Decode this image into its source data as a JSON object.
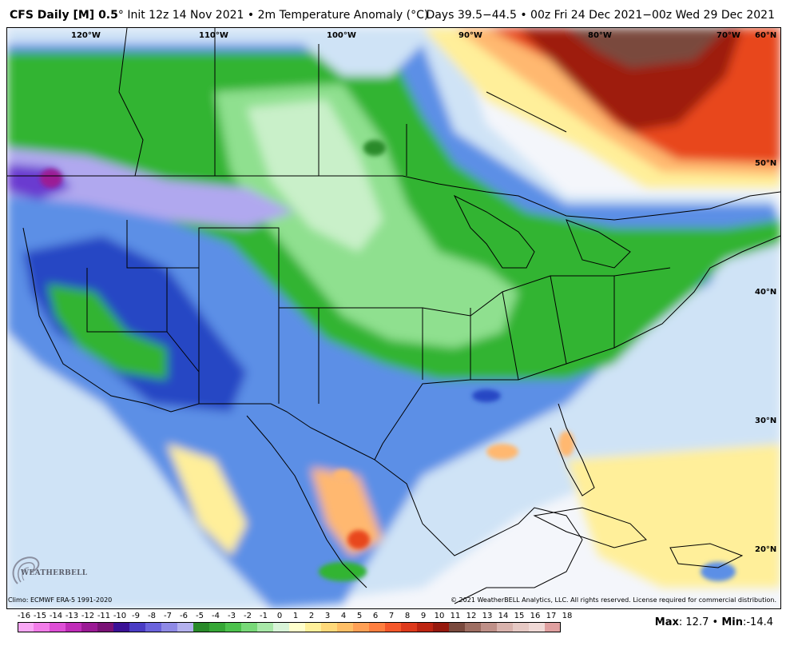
{
  "header": {
    "model": "CFS Daily [M] 0.5",
    "degree_mark": "°",
    "init": "Init 12z 14 Nov 2021",
    "bullet": "•",
    "variable": "2m Temperature Anomaly (°C)",
    "valid": "Days 39.5−44.5 • 00z Fri 24 Dec 2021−00z Wed 29 Dec 2021"
  },
  "longitude_labels": [
    "120°W",
    "110°W",
    "100°W",
    "90°W",
    "80°W",
    "70°W",
    "60°N"
  ],
  "latitude_labels": [
    "50°N",
    "40°N",
    "30°N",
    "20°N"
  ],
  "footer": {
    "climo": "Climo: ECMWF ERA-5 1991-2020",
    "copyright": "© 2021 WeatherBELL Analytics, LLC. All rights reserved. License required for commercial distribution.",
    "logo_text": "WEATHERBELL",
    "max_label": "Max",
    "max_value": "12.7",
    "min_label": "Min",
    "min_value": "-14.4",
    "separator": "•",
    "colon": ":"
  },
  "colorbar": {
    "labels": [
      "-16",
      "-15",
      "-14",
      "-13",
      "-12",
      "-11",
      "-10",
      "-9",
      "-8",
      "-7",
      "-6",
      "-5",
      "-4",
      "-3",
      "-2",
      "-1",
      "0",
      "1",
      "2",
      "3",
      "4",
      "5",
      "6",
      "7",
      "8",
      "9",
      "10",
      "11",
      "12",
      "13",
      "14",
      "15",
      "16",
      "17",
      "18"
    ],
    "colors": [
      "#f9a8f5",
      "#f27de9",
      "#de4fd6",
      "#c02cb8",
      "#9b1a95",
      "#7a1276",
      "#3b1296",
      "#4a3cc4",
      "#6b63dc",
      "#8f8ae6",
      "#b4b1ee",
      "#2a8a2a",
      "#36a736",
      "#4dc24d",
      "#78d878",
      "#a8e8a8",
      "#d8f4d8",
      "#ffffcc",
      "#fff09a",
      "#ffd97a",
      "#ffbf66",
      "#ffa055",
      "#ff7f40",
      "#f5582b",
      "#de3a1c",
      "#bd2512",
      "#961a0e",
      "#7a4a3e",
      "#9e6e62",
      "#bf9088",
      "#d9b3ad",
      "#e6c9c4",
      "#f0d9d6",
      "#e0a0a0",
      "#c06060"
    ]
  },
  "map": {
    "colors": {
      "background": "#f4f6fb",
      "light_blue": "#cfe3f6",
      "blue": "#5b8fe6",
      "deep_blue": "#2746c4",
      "green": "#32b432",
      "light_green": "#8fe08f",
      "pale_green": "#c9f0c9",
      "lavender": "#b0a8ef",
      "purple": "#6a3bd0",
      "magenta": "#9b1a95",
      "yellow": "#ffef9a",
      "orange": "#ffb870",
      "red": "#e8461e",
      "dark_red": "#9e1a0e",
      "brown": "#7a4a3e"
    }
  }
}
